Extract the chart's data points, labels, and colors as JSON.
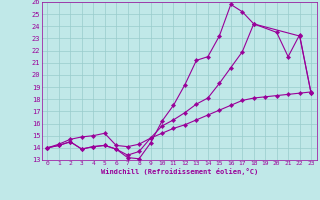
{
  "xlabel": "Windchill (Refroidissement éolien,°C)",
  "bg_color": "#c0e8e8",
  "line_color": "#990099",
  "grid_color": "#99cccc",
  "xlim": [
    -0.5,
    23.5
  ],
  "ylim": [
    13,
    26
  ],
  "xticks": [
    0,
    1,
    2,
    3,
    4,
    5,
    6,
    7,
    8,
    9,
    10,
    11,
    12,
    13,
    14,
    15,
    16,
    17,
    18,
    19,
    20,
    21,
    22,
    23
  ],
  "yticks": [
    13,
    14,
    15,
    16,
    17,
    18,
    19,
    20,
    21,
    22,
    23,
    24,
    25,
    26
  ],
  "line1_x": [
    0,
    1,
    2,
    3,
    4,
    5,
    6,
    7,
    8,
    9,
    10,
    11,
    12,
    13,
    14,
    15,
    16,
    17,
    18,
    22,
    23
  ],
  "line1_y": [
    14.0,
    14.2,
    14.5,
    13.9,
    14.1,
    14.2,
    13.9,
    13.2,
    13.1,
    14.4,
    16.2,
    17.5,
    19.2,
    21.2,
    21.5,
    23.2,
    25.8,
    25.2,
    24.2,
    23.2,
    18.5
  ],
  "line2_x": [
    0,
    1,
    2,
    3,
    4,
    5,
    6,
    7,
    8,
    9,
    10,
    11,
    12,
    13,
    14,
    15,
    16,
    17,
    18,
    20,
    21,
    22,
    23
  ],
  "line2_y": [
    14.0,
    14.2,
    14.5,
    13.9,
    14.1,
    14.2,
    13.9,
    13.4,
    13.7,
    14.8,
    15.8,
    16.3,
    16.9,
    17.6,
    18.1,
    19.3,
    20.6,
    21.9,
    24.2,
    23.5,
    21.5,
    23.3,
    18.5
  ],
  "line3_x": [
    0,
    1,
    2,
    3,
    4,
    5,
    6,
    7,
    8,
    9,
    10,
    11,
    12,
    13,
    14,
    15,
    16,
    17,
    18,
    19,
    20,
    21,
    22,
    23
  ],
  "line3_y": [
    14.0,
    14.3,
    14.7,
    14.9,
    15.0,
    15.2,
    14.2,
    14.1,
    14.3,
    14.8,
    15.2,
    15.6,
    15.9,
    16.3,
    16.7,
    17.1,
    17.5,
    17.9,
    18.1,
    18.2,
    18.3,
    18.4,
    18.5,
    18.6
  ]
}
